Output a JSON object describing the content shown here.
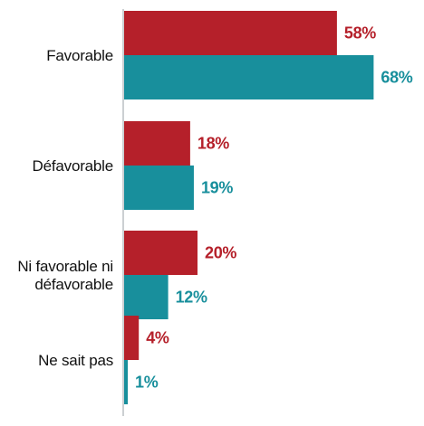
{
  "chart_data": {
    "type": "bar",
    "orientation": "horizontal",
    "categories": [
      [
        "Favorable"
      ],
      [
        "Défavorable"
      ],
      [
        "Ni favorable ni",
        "défavorable"
      ],
      [
        "Ne sait pas"
      ]
    ],
    "series": [
      {
        "color": "#b5202a",
        "values": [
          58,
          18,
          20,
          4
        ],
        "labels": [
          "58%",
          "18%",
          "20%",
          "4%"
        ]
      },
      {
        "color": "#188f9c",
        "values": [
          68,
          19,
          12,
          1
        ],
        "labels": [
          "68%",
          "19%",
          "12%",
          "1%"
        ]
      }
    ],
    "xlim": [
      0,
      100
    ],
    "unit": "%",
    "grid": false,
    "legend": "none"
  }
}
